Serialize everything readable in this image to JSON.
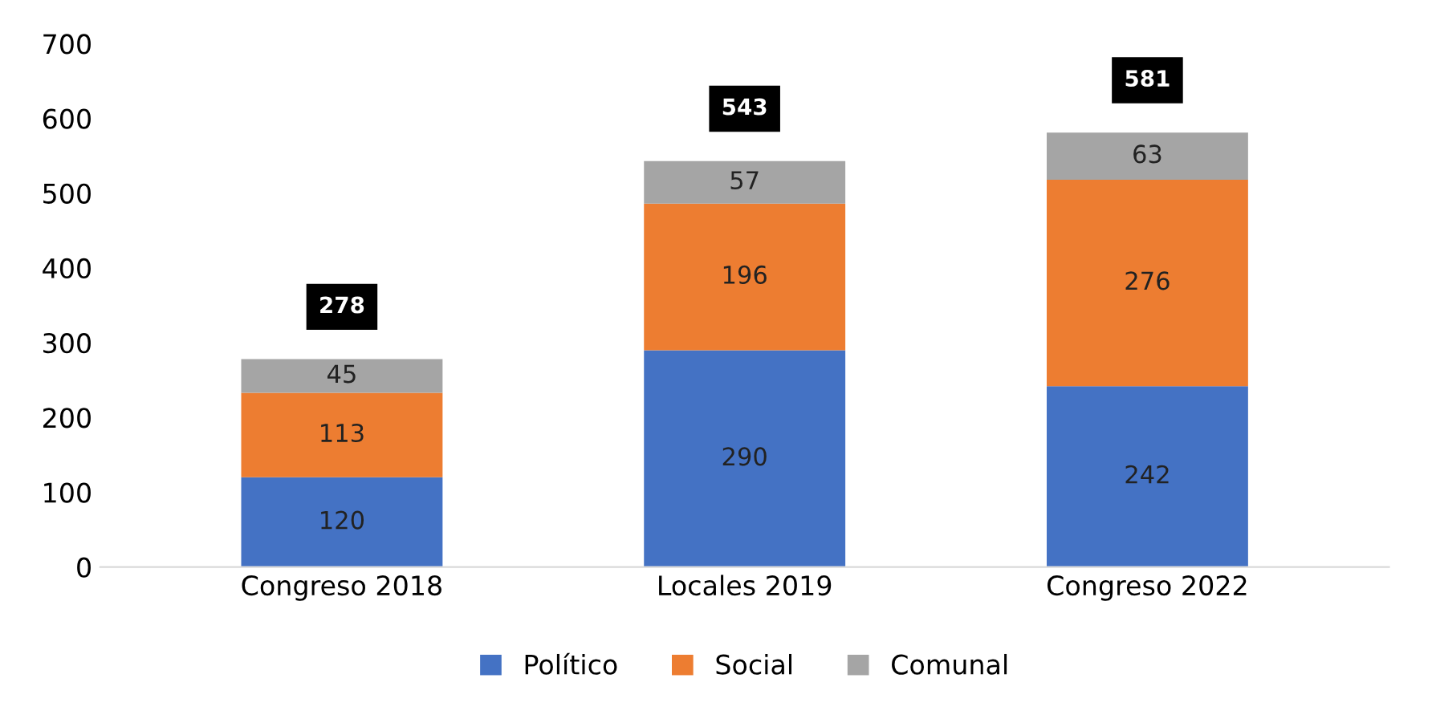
{
  "chart_data": {
    "type": "bar",
    "stacked": true,
    "categories": [
      "Congreso 2018",
      "Locales 2019",
      "Congreso 2022"
    ],
    "series": [
      {
        "name": "Político",
        "color": "#4472c4",
        "values": [
          120,
          290,
          242
        ]
      },
      {
        "name": "Social",
        "color": "#ed7d31",
        "values": [
          113,
          196,
          276
        ]
      },
      {
        "name": "Comunal",
        "color": "#a5a5a5",
        "values": [
          45,
          57,
          63
        ]
      }
    ],
    "ylim": [
      0,
      700
    ],
    "yticks": [
      0,
      100,
      200,
      300,
      400,
      500,
      600,
      700
    ],
    "grid": false,
    "legend": "bottom",
    "data_labels": true,
    "totals": [
      "278",
      "543",
      "581"
    ]
  }
}
